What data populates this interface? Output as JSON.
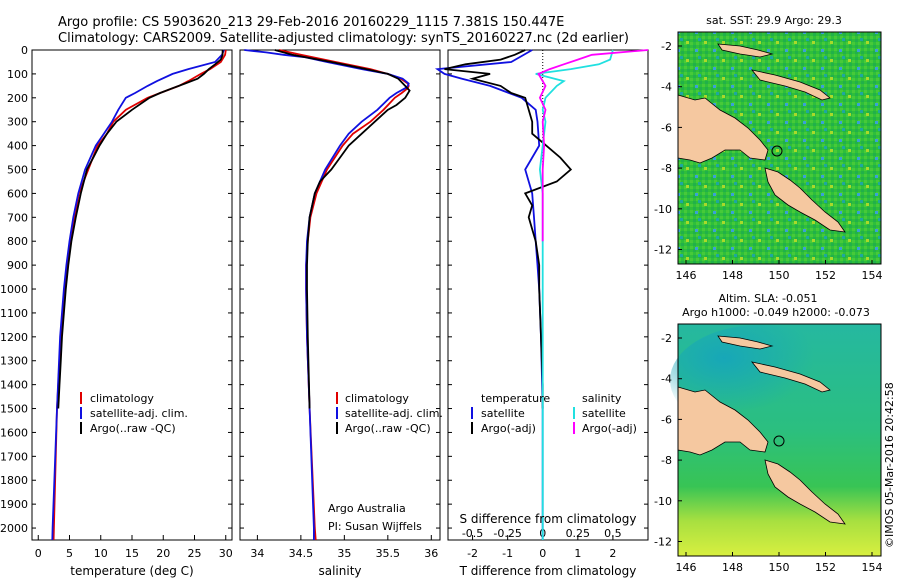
{
  "header": {
    "line1": "Argo profile: CS 5903620_213 29-Feb-2016 20160229_1115 7.381S 150.447E",
    "line2": "Climatology: CARS2009. Satellite-adjusted climatology: synTS_20160227.nc (2d earlier)"
  },
  "colors": {
    "climatology": "#e00000",
    "satellite": "#1010e0",
    "argo": "#000000",
    "satellite_diff": "#20e0e0",
    "argo_diff": "#ff00ff",
    "land": "#f5c8a0"
  },
  "depth_axis": {
    "ticks": [
      "0",
      "100",
      "200",
      "300",
      "400",
      "500",
      "600",
      "700",
      "800",
      "900",
      "1000",
      "1100",
      "1200",
      "1300",
      "1400",
      "1500",
      "1600",
      "1700",
      "1800",
      "1900",
      "2000"
    ]
  },
  "chart_data": [
    {
      "type": "line",
      "name": "temperature",
      "xlabel": "temperature (deg C)",
      "ylabel": "depth",
      "xlim": [
        -1,
        31
      ],
      "ylim": [
        2050,
        0
      ],
      "xticks": [
        "0",
        "5",
        "10",
        "15",
        "20",
        "25",
        "30"
      ],
      "legend": [
        "climatology",
        "satellite-adj. clim.",
        "Argo(..raw -QC)"
      ],
      "series": [
        {
          "name": "climatology",
          "depth": [
            0,
            20,
            50,
            80,
            100,
            130,
            150,
            180,
            200,
            250,
            300,
            350,
            400,
            500,
            600,
            700,
            800,
            900,
            1000,
            1200,
            1500,
            2000,
            2050
          ],
          "values": [
            30,
            29.9,
            29.2,
            27.5,
            26,
            24,
            22.5,
            19.5,
            17.5,
            14,
            12,
            11,
            9.5,
            8,
            6.5,
            5.8,
            5.2,
            4.6,
            4.2,
            3.6,
            3.0,
            2.5,
            2.45
          ]
        },
        {
          "name": "satellite-adj. clim.",
          "depth": [
            0,
            20,
            50,
            80,
            100,
            130,
            150,
            180,
            200,
            250,
            300,
            350,
            400,
            500,
            600,
            700,
            800,
            900,
            1000,
            1200,
            1500,
            2000,
            2050
          ],
          "values": [
            29.7,
            29.4,
            28.3,
            24,
            21.5,
            19,
            17.5,
            15.5,
            14,
            12.8,
            11.8,
            10.5,
            9.2,
            7.5,
            6.4,
            5.6,
            5.0,
            4.5,
            4.1,
            3.5,
            3.0,
            2.3,
            2.25
          ]
        },
        {
          "name": "Argo(..raw -QC)",
          "depth": [
            0,
            20,
            40,
            60,
            80,
            100,
            120,
            140,
            160,
            180,
            200,
            250,
            300,
            350,
            400,
            450,
            500,
            600,
            700,
            800,
            900,
            1000,
            1100,
            1200,
            1300,
            1400,
            1500
          ],
          "values": [
            29.5,
            29.5,
            29.2,
            28.3,
            27.3,
            26.5,
            25.5,
            23.5,
            21.5,
            19.5,
            17.8,
            15,
            12.5,
            11,
            9.8,
            8.8,
            7.8,
            6.8,
            6,
            5.3,
            4.8,
            4.4,
            4.1,
            3.8,
            3.6,
            3.4,
            3.2
          ]
        }
      ]
    },
    {
      "type": "line",
      "name": "salinity",
      "xlabel": "salinity",
      "ylabel": "depth",
      "xlim": [
        33.8,
        36.1
      ],
      "ylim": [
        2050,
        0
      ],
      "xticks": [
        "34",
        "34.5",
        "35",
        "35.5",
        "36"
      ],
      "legend": [
        "climatology",
        "satellite-adj. clim.",
        "Argo(..raw -QC)"
      ],
      "annotations": [
        "Argo Australia",
        "PI: Susan Wijffels"
      ],
      "series": [
        {
          "name": "climatology",
          "depth": [
            0,
            20,
            50,
            80,
            100,
            120,
            140,
            150,
            160,
            180,
            200,
            250,
            300,
            350,
            400,
            500,
            600,
            700,
            800,
            900,
            1000,
            1200,
            1500,
            2000,
            2050
          ],
          "values": [
            34.25,
            34.5,
            34.9,
            35.3,
            35.5,
            35.65,
            35.73,
            35.74,
            35.73,
            35.66,
            35.58,
            35.45,
            35.3,
            35.1,
            34.98,
            34.8,
            34.68,
            34.61,
            34.58,
            34.56,
            34.56,
            34.57,
            34.6,
            34.66,
            34.67
          ]
        },
        {
          "name": "satellite-adj. clim.",
          "depth": [
            0,
            10,
            20,
            30,
            50,
            80,
            100,
            120,
            140,
            150,
            160,
            180,
            200,
            250,
            300,
            350,
            400,
            500,
            600,
            700,
            800,
            900,
            1000,
            1200,
            1500,
            2000,
            2050
          ],
          "values": [
            33.85,
            34.1,
            34.3,
            34.55,
            34.8,
            35.2,
            35.5,
            35.67,
            35.74,
            35.73,
            35.7,
            35.6,
            35.52,
            35.38,
            35.2,
            35.05,
            34.95,
            34.78,
            34.66,
            34.6,
            34.57,
            34.56,
            34.56,
            34.57,
            34.6,
            34.65,
            34.65
          ]
        },
        {
          "name": "Argo(..raw -QC)",
          "depth": [
            0,
            20,
            50,
            80,
            100,
            120,
            150,
            170,
            200,
            230,
            250,
            300,
            350,
            400,
            450,
            500,
            550,
            600,
            700,
            800,
            900,
            1000,
            1200,
            1500
          ],
          "values": [
            34.2,
            34.4,
            34.85,
            35.25,
            35.5,
            35.62,
            35.7,
            35.75,
            35.7,
            35.6,
            35.5,
            35.35,
            35.2,
            35.05,
            34.95,
            34.85,
            34.72,
            34.66,
            34.6,
            34.58,
            34.57,
            34.57,
            34.58,
            34.6
          ]
        }
      ]
    },
    {
      "type": "line",
      "name": "difference",
      "xlabel": "T difference from climatology",
      "xlabel2": "S difference from climatology",
      "ylabel": "depth",
      "xlim_t": [
        -2.7,
        3.0
      ],
      "xticks_t": [
        "-2",
        "-1",
        "0",
        "1",
        "2"
      ],
      "xticks_s": [
        "-0.5",
        "-0.25",
        "0",
        "0.25",
        "0.5"
      ],
      "legend_temperature": [
        "temperature",
        "satellite",
        "Argo(-adj)"
      ],
      "legend_salinity": [
        "salinity",
        "satellite",
        "Argo(-adj)"
      ],
      "series": [
        {
          "name": "temperature satellite",
          "depth": [
            0,
            50,
            80,
            100,
            120,
            150,
            200,
            250,
            300,
            400,
            500,
            600,
            700,
            800,
            900,
            1000,
            1200,
            1500,
            2000,
            2050
          ],
          "values": [
            -0.3,
            -0.9,
            -3.0,
            -2.8,
            -2.3,
            -1.5,
            -0.6,
            -0.2,
            -0.15,
            -0.1,
            -0.5,
            -0.3,
            -0.25,
            -0.2,
            -0.15,
            -0.1,
            -0.05,
            0.0,
            0.0,
            0.0
          ]
        },
        {
          "name": "temperature Argo(-adj)",
          "depth": [
            0,
            20,
            40,
            60,
            80,
            100,
            120,
            150,
            180,
            200,
            250,
            300,
            350,
            400,
            450,
            500,
            550,
            600,
            650,
            700,
            800,
            900,
            1000,
            1200,
            1400,
            1500
          ],
          "values": [
            -0.5,
            -0.8,
            -1.2,
            -2.2,
            -2.8,
            -1.5,
            -2.0,
            -1.2,
            -0.9,
            -0.5,
            -0.4,
            -0.3,
            -0.3,
            0.1,
            0.5,
            0.8,
            0.4,
            -0.5,
            -0.3,
            -0.4,
            -0.2,
            -0.1,
            -0.1,
            -0.05,
            0.0,
            0.0
          ]
        },
        {
          "name": "salinity satellite",
          "depth": [
            0,
            40,
            60,
            80,
            100,
            130,
            150,
            200,
            250,
            300,
            400,
            500,
            600,
            800,
            1000,
            1500,
            2000,
            2050
          ],
          "values": [
            0.5,
            0.48,
            0.4,
            0.2,
            -0.05,
            0.15,
            0.1,
            0.02,
            0.0,
            0.02,
            0.0,
            -0.02,
            0.0,
            0.0,
            0.0,
            0.0,
            0.0,
            0.0
          ]
        },
        {
          "name": "salinity Argo(-adj)",
          "depth": [
            0,
            20,
            40,
            60,
            80,
            100,
            150,
            200,
            250,
            300,
            400,
            500,
            600,
            700,
            800
          ],
          "values": [
            0.75,
            0.35,
            0.25,
            0.15,
            0.05,
            -0.03,
            0.02,
            -0.02,
            0.02,
            0.0,
            0.01,
            0.0,
            0.0,
            0.0,
            0.0
          ]
        }
      ]
    },
    {
      "type": "heatmap",
      "name": "sst map",
      "title": "sat. SST: 29.9  Argo: 29.3",
      "xticks": [
        "146",
        "148",
        "150",
        "152",
        "154"
      ],
      "yticks": [
        "-2",
        "-4",
        "-6",
        "-8",
        "-10",
        "-12"
      ]
    },
    {
      "type": "heatmap",
      "name": "sla map",
      "title": "Altim. SLA: -0.051",
      "subtitle": "Argo h1000: -0.049 h2000: -0.073",
      "xticks": [
        "146",
        "148",
        "150",
        "152",
        "154"
      ],
      "yticks": [
        "-2",
        "-4",
        "-6",
        "-8",
        "-10",
        "-12"
      ]
    }
  ],
  "footer": {
    "credit": "©IMOS 05-Mar-2016 20:42:58"
  }
}
